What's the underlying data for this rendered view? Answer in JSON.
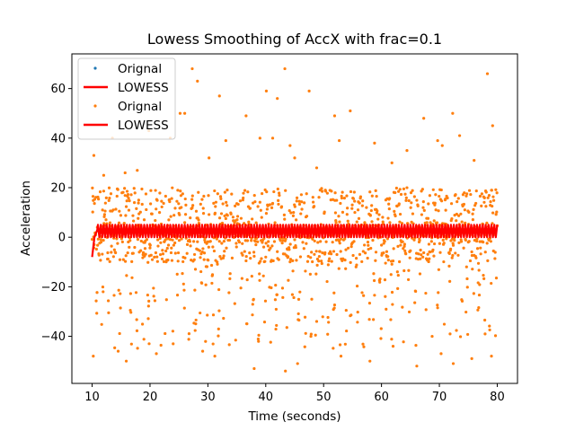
{
  "chart_data": {
    "type": "scatter",
    "title": "Lowess Smoothing of AccX with frac=0.1",
    "xlabel": "Time (seconds)",
    "ylabel": "Acceleration",
    "xlim": [
      6.5,
      83.5
    ],
    "ylim": [
      -59,
      74
    ],
    "xticks": [
      10,
      20,
      30,
      40,
      50,
      60,
      70,
      80
    ],
    "yticks": [
      -40,
      -20,
      0,
      20,
      40,
      60
    ],
    "grid": false,
    "legend_position": "top-left",
    "legend": [
      {
        "label": "Orignal",
        "kind": "marker",
        "color": "#1f77b4"
      },
      {
        "label": "LOWESS",
        "kind": "line",
        "color": "#ff0000"
      },
      {
        "label": "Orignal",
        "kind": "marker",
        "color": "#ff7f0e"
      },
      {
        "label": "LOWESS",
        "kind": "line",
        "color": "#ff0000"
      }
    ],
    "series": [
      {
        "name": "Orignal",
        "type": "scatter",
        "color": "#ff7f0e",
        "x_range": [
          10,
          80
        ],
        "sample_interval": 0.05,
        "period": 1.0,
        "y_band": [
          -10,
          20
        ],
        "y_extremes": [
          -54,
          68
        ],
        "outliers": [
          {
            "x": 10.3,
            "y": 33
          },
          {
            "x": 12.0,
            "y": 25
          },
          {
            "x": 13.5,
            "y": 40
          },
          {
            "x": 15.7,
            "y": 26
          },
          {
            "x": 17.8,
            "y": 27
          },
          {
            "x": 19.8,
            "y": 43
          },
          {
            "x": 23.5,
            "y": 40
          },
          {
            "x": 25.2,
            "y": 50
          },
          {
            "x": 26.0,
            "y": 50
          },
          {
            "x": 27.3,
            "y": 68
          },
          {
            "x": 28.2,
            "y": 63
          },
          {
            "x": 30.2,
            "y": 32
          },
          {
            "x": 32.0,
            "y": 57
          },
          {
            "x": 33.1,
            "y": 39
          },
          {
            "x": 36.6,
            "y": 49
          },
          {
            "x": 39.0,
            "y": 40
          },
          {
            "x": 40.1,
            "y": 59
          },
          {
            "x": 41.2,
            "y": 40
          },
          {
            "x": 42.0,
            "y": 56
          },
          {
            "x": 43.3,
            "y": 68
          },
          {
            "x": 44.2,
            "y": 37
          },
          {
            "x": 45.0,
            "y": 32
          },
          {
            "x": 47.5,
            "y": 59
          },
          {
            "x": 48.8,
            "y": 28
          },
          {
            "x": 51.9,
            "y": 49
          },
          {
            "x": 52.7,
            "y": 39
          },
          {
            "x": 54.6,
            "y": 51
          },
          {
            "x": 58.8,
            "y": 38
          },
          {
            "x": 61.8,
            "y": 30
          },
          {
            "x": 64.4,
            "y": 35
          },
          {
            "x": 67.3,
            "y": 48
          },
          {
            "x": 69.7,
            "y": 39
          },
          {
            "x": 70.5,
            "y": 37
          },
          {
            "x": 72.3,
            "y": 50
          },
          {
            "x": 73.5,
            "y": 41
          },
          {
            "x": 76.0,
            "y": 31
          },
          {
            "x": 78.3,
            "y": 66
          },
          {
            "x": 79.2,
            "y": 45
          },
          {
            "x": 10.2,
            "y": -48
          },
          {
            "x": 14.5,
            "y": -46
          },
          {
            "x": 15.9,
            "y": -50
          },
          {
            "x": 21.1,
            "y": -47
          },
          {
            "x": 24.0,
            "y": -43
          },
          {
            "x": 29.1,
            "y": -46
          },
          {
            "x": 31.2,
            "y": -48
          },
          {
            "x": 38.0,
            "y": -53
          },
          {
            "x": 43.4,
            "y": -54
          },
          {
            "x": 45.5,
            "y": -51
          },
          {
            "x": 53.0,
            "y": -48
          },
          {
            "x": 58.0,
            "y": -50
          },
          {
            "x": 62.0,
            "y": -44
          },
          {
            "x": 66.1,
            "y": -52
          },
          {
            "x": 70.3,
            "y": -47
          },
          {
            "x": 72.4,
            "y": -51
          },
          {
            "x": 75.6,
            "y": -49
          },
          {
            "x": 79.0,
            "y": -48
          }
        ]
      },
      {
        "name": "LOWESS",
        "type": "line",
        "color": "#ff0000",
        "start_points": [
          {
            "x": 10.0,
            "y": -8
          },
          {
            "x": 10.4,
            "y": 0
          },
          {
            "x": 10.9,
            "y": 3
          }
        ],
        "oscillation": {
          "x_start": 11.0,
          "x_end": 80.0,
          "period": 1.0,
          "low": 0,
          "high": 5
        }
      }
    ]
  }
}
